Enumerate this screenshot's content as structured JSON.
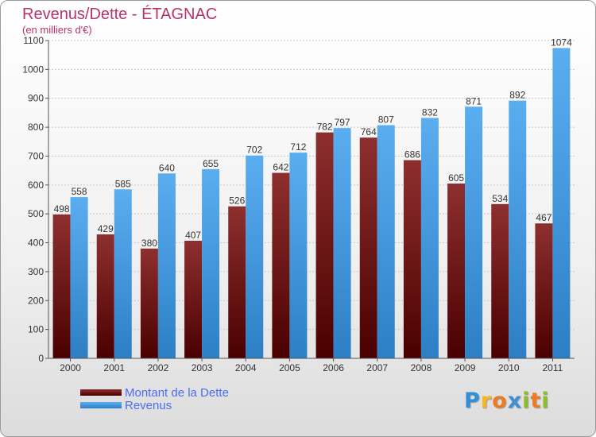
{
  "header": {
    "title": "Revenus/Dette - ÉTAGNAC",
    "subtitle": "(en milliers d'€)"
  },
  "brand": {
    "letters": [
      "P",
      "r",
      "o",
      "x",
      "i",
      "t",
      "i"
    ],
    "colors": [
      "#2f8fd9",
      "#f7b81d",
      "#ef7a24",
      "#3e8fd4",
      "#8cbd2b",
      "#ef7a24",
      "#8cbd2b"
    ]
  },
  "chart_data": {
    "type": "bar",
    "title": "Revenus/Dette - ÉTAGNAC",
    "subtitle": "(en milliers d'€)",
    "categories": [
      "2000",
      "2001",
      "2002",
      "2003",
      "2004",
      "2005",
      "2006",
      "2007",
      "2008",
      "2009",
      "2010",
      "2011"
    ],
    "series": [
      {
        "name": "Montant de la Dette",
        "color": "#7b1a1a",
        "values": [
          498,
          429,
          380,
          407,
          526,
          642,
          782,
          764,
          686,
          605,
          534,
          467
        ]
      },
      {
        "name": "Revenus",
        "color": "#3d98e0",
        "values": [
          558,
          585,
          640,
          655,
          702,
          712,
          797,
          807,
          832,
          871,
          892,
          1074
        ]
      }
    ],
    "ylim": [
      0,
      1100
    ],
    "yticks": [
      "0",
      "100",
      "200",
      "300",
      "400",
      "500",
      "600",
      "700",
      "800",
      "900",
      "1000",
      "1100"
    ],
    "grid": true,
    "legend_position": "bottom-left"
  }
}
